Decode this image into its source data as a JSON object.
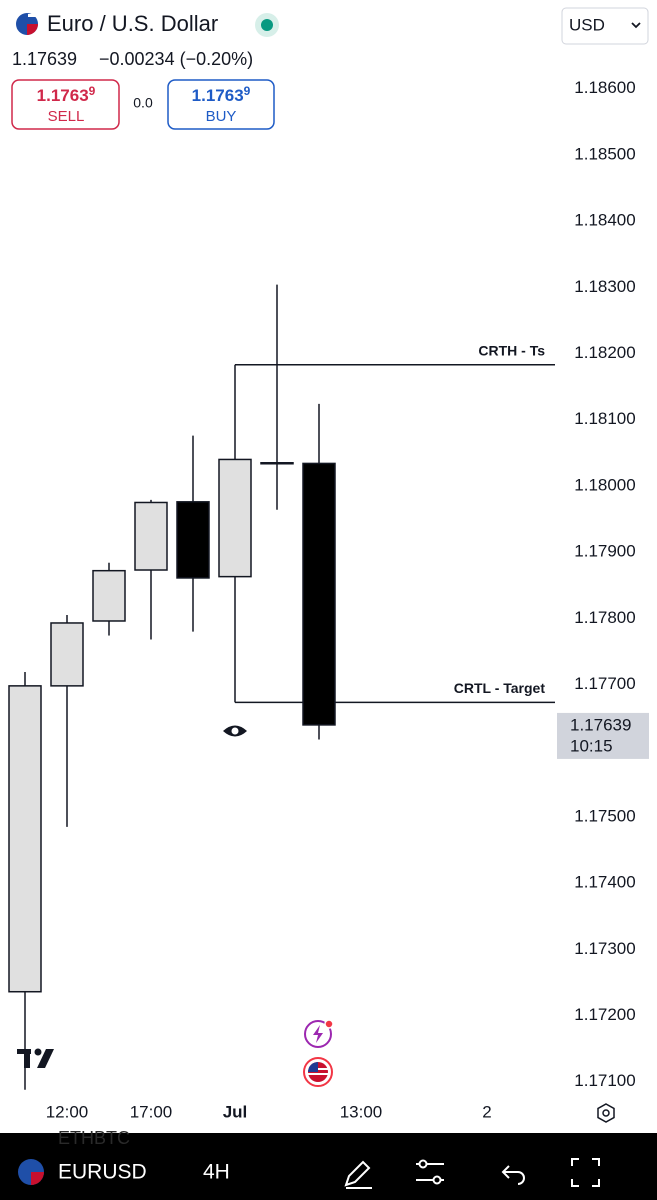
{
  "header": {
    "title": "Euro / U.S. Dollar",
    "price": "1.17639",
    "change": "−0.00234 (−0.20%)",
    "currency": "USD",
    "sell": {
      "price": "1.1763",
      "pip": "9",
      "label": "SELL"
    },
    "spread": "0.0",
    "buy": {
      "price": "1.1763",
      "pip": "9",
      "label": "BUY"
    }
  },
  "toolbar": {
    "symbol": "EURUSD",
    "interval": "4H",
    "ghost": "ETHBTC"
  },
  "chart_data": {
    "type": "candlestick",
    "categories": [
      null,
      "12:00",
      null,
      "17:00",
      null,
      "Jul",
      null,
      null,
      "13:00",
      null,
      null,
      "2"
    ],
    "open": [
      1.17236,
      1.17698,
      1.17796,
      1.17873,
      1.17976,
      1.17863,
      1.18035,
      1.18034,
      null,
      null,
      null,
      null
    ],
    "high": [
      1.17719,
      1.17805,
      1.17884,
      1.17979,
      1.18076,
      1.18183,
      1.18304,
      1.18124,
      null,
      null,
      null,
      null
    ],
    "low": [
      1.17088,
      1.17485,
      1.17774,
      1.17768,
      1.1778,
      1.17673,
      1.17964,
      1.17617,
      null,
      null,
      null,
      null
    ],
    "close": [
      1.17698,
      1.17793,
      1.17872,
      1.17975,
      1.17861,
      1.1804,
      1.18035,
      1.17639,
      null,
      null,
      null,
      null
    ],
    "up_color": "#e0e0e0",
    "down_color": "#000000",
    "ylim": [
      1.1708,
      1.18734
    ],
    "yticks": [
      {
        "value": 1.186,
        "label": "1.18600"
      },
      {
        "value": 1.185,
        "label": "1.18500"
      },
      {
        "value": 1.184,
        "label": "1.18400"
      },
      {
        "value": 1.183,
        "label": "1.18300"
      },
      {
        "value": 1.182,
        "label": "1.18200"
      },
      {
        "value": 1.181,
        "label": "1.18100"
      },
      {
        "value": 1.18,
        "label": "1.18000"
      },
      {
        "value": 1.179,
        "label": "1.17900"
      },
      {
        "value": 1.178,
        "label": "1.17800"
      },
      {
        "value": 1.177,
        "label": "1.17700"
      },
      {
        "value": 1.175,
        "label": "1.17500"
      },
      {
        "value": 1.174,
        "label": "1.17400"
      },
      {
        "value": 1.173,
        "label": "1.17300"
      },
      {
        "value": 1.172,
        "label": "1.17200"
      },
      {
        "value": 1.171,
        "label": "1.17100"
      }
    ],
    "annotations": [
      {
        "text": "CRTH - Ts",
        "value": 1.18183
      },
      {
        "text": "CRTL - Target",
        "value": 1.17673
      }
    ],
    "last_price": {
      "value": 1.17639,
      "countdown": "10:15"
    }
  }
}
